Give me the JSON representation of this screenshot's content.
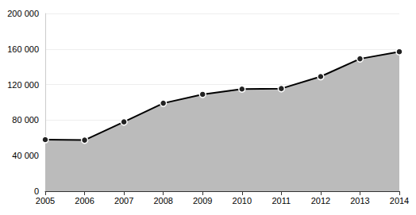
{
  "chart_data": {
    "type": "area",
    "categories": [
      "2005",
      "2006",
      "2007",
      "2008",
      "2009",
      "2010",
      "2011",
      "2012",
      "2013",
      "2014"
    ],
    "values": [
      58000,
      57500,
      78000,
      99000,
      109000,
      115000,
      115500,
      129000,
      149000,
      157000
    ],
    "color": "#000000",
    "marker": "circle",
    "ylim": [
      0,
      200000
    ],
    "yticks": [
      0,
      {
        "value": 40000,
        "label": "40 000"
      },
      {
        "value": 80000,
        "label": "80 000"
      },
      {
        "value": 120000,
        "label": "120 000"
      },
      {
        "value": 160000,
        "label": "160 000"
      },
      {
        "value": 200000,
        "label": "200 000"
      }
    ],
    "grid": true
  }
}
